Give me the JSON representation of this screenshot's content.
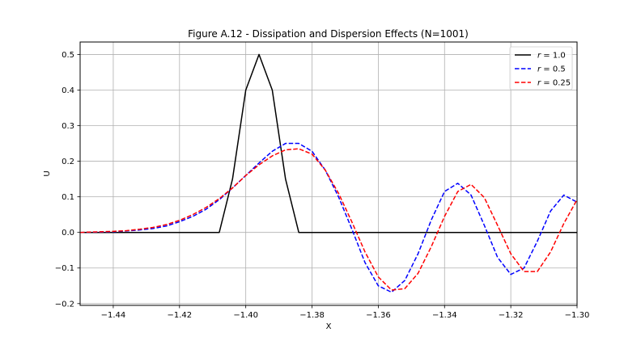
{
  "chart_data": {
    "type": "line",
    "title": "Figure A.12 - Dissipation and Dispersion Effects (N=1001)",
    "xlabel": "X",
    "ylabel": "U",
    "xlim": [
      -1.45,
      -1.3
    ],
    "ylim": [
      -0.205,
      0.535
    ],
    "xticks": [
      -1.44,
      -1.42,
      -1.4,
      -1.38,
      -1.36,
      -1.34,
      -1.32,
      -1.3
    ],
    "xtick_labels": [
      "−1.44",
      "−1.42",
      "−1.40",
      "−1.38",
      "−1.36",
      "−1.34",
      "−1.32",
      "−1.30"
    ],
    "yticks": [
      -0.2,
      -0.1,
      0.0,
      0.1,
      0.2,
      0.3,
      0.4,
      0.5
    ],
    "ytick_labels": [
      "−0.2",
      "−0.1",
      "0.0",
      "0.1",
      "0.2",
      "0.3",
      "0.4",
      "0.5"
    ],
    "grid": true,
    "legend_position": "top-right",
    "series": [
      {
        "name": "r = 1.0",
        "legend_var": "r",
        "legend_val": "= 1.0",
        "color": "#000000",
        "dash": "solid",
        "x": [
          -1.45,
          -1.408,
          -1.404,
          -1.4,
          -1.396,
          -1.392,
          -1.388,
          -1.384,
          -1.3
        ],
        "y": [
          0.0,
          0.0,
          0.15,
          0.4,
          0.5,
          0.4,
          0.15,
          0.0,
          0.0
        ]
      },
      {
        "name": "r = 0.5",
        "legend_var": "r",
        "legend_val": "= 0.5",
        "color": "#0000ff",
        "dash": "dashed",
        "x": [
          -1.45,
          -1.44,
          -1.436,
          -1.432,
          -1.428,
          -1.424,
          -1.42,
          -1.416,
          -1.412,
          -1.408,
          -1.404,
          -1.4,
          -1.396,
          -1.392,
          -1.388,
          -1.384,
          -1.38,
          -1.376,
          -1.372,
          -1.368,
          -1.364,
          -1.36,
          -1.356,
          -1.352,
          -1.348,
          -1.344,
          -1.34,
          -1.336,
          -1.332,
          -1.328,
          -1.324,
          -1.32,
          -1.316,
          -1.312,
          -1.308,
          -1.304,
          -1.3
        ],
        "y": [
          0.0,
          0.002,
          0.004,
          0.007,
          0.011,
          0.018,
          0.03,
          0.045,
          0.065,
          0.092,
          0.125,
          0.16,
          0.195,
          0.228,
          0.25,
          0.25,
          0.228,
          0.175,
          0.1,
          0.01,
          -0.085,
          -0.15,
          -0.168,
          -0.135,
          -0.06,
          0.035,
          0.115,
          0.138,
          0.105,
          0.02,
          -0.07,
          -0.118,
          -0.1,
          -0.025,
          0.06,
          0.105,
          0.085
        ]
      },
      {
        "name": "r = 0.25",
        "legend_var": "r",
        "legend_val": "= 0.25",
        "color": "#ff0000",
        "dash": "dashed",
        "x": [
          -1.45,
          -1.44,
          -1.436,
          -1.432,
          -1.428,
          -1.424,
          -1.42,
          -1.416,
          -1.412,
          -1.408,
          -1.404,
          -1.4,
          -1.396,
          -1.392,
          -1.388,
          -1.384,
          -1.38,
          -1.376,
          -1.372,
          -1.368,
          -1.364,
          -1.36,
          -1.356,
          -1.352,
          -1.348,
          -1.344,
          -1.34,
          -1.336,
          -1.332,
          -1.328,
          -1.324,
          -1.32,
          -1.316,
          -1.312,
          -1.308,
          -1.304,
          -1.3
        ],
        "y": [
          0.0,
          0.003,
          0.005,
          0.009,
          0.014,
          0.022,
          0.034,
          0.05,
          0.07,
          0.095,
          0.125,
          0.16,
          0.19,
          0.215,
          0.232,
          0.235,
          0.22,
          0.175,
          0.11,
          0.03,
          -0.055,
          -0.125,
          -0.162,
          -0.158,
          -0.115,
          -0.04,
          0.045,
          0.115,
          0.135,
          0.098,
          0.02,
          -0.06,
          -0.11,
          -0.11,
          -0.055,
          0.025,
          0.092
        ]
      }
    ]
  }
}
